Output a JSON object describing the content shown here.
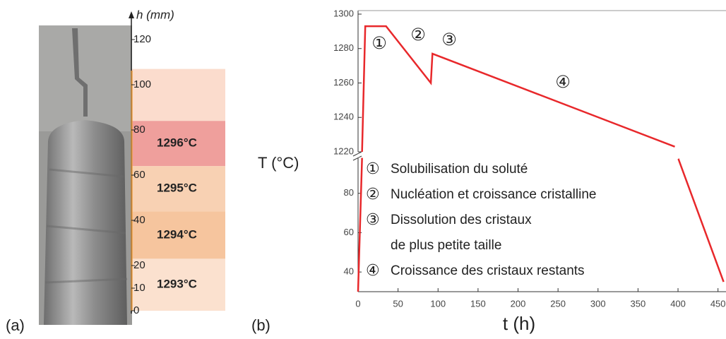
{
  "chart_data": [
    {
      "type": "bands",
      "panel_label": "(a)",
      "ylabel": "h (mm)",
      "ylim": [
        0,
        120
      ],
      "yticks": [
        0,
        10,
        20,
        40,
        60,
        80,
        100,
        120
      ],
      "bands": [
        {
          "range": [
            84,
            107
          ],
          "label": null,
          "color": "#fbdccd"
        },
        {
          "range": [
            64,
            84
          ],
          "label": "1296°C",
          "color": "#ef9f9c"
        },
        {
          "range": [
            44,
            64
          ],
          "label": "1295°C",
          "color": "#f8d1b3"
        },
        {
          "range": [
            23,
            44
          ],
          "label": "1294°C",
          "color": "#f6c59e"
        },
        {
          "range": [
            0,
            23
          ],
          "label": "1293°C",
          "color": "#fbe1cf"
        }
      ]
    },
    {
      "type": "line",
      "panel_label": "(b)",
      "xlabel": "t (h)",
      "ylabel": "T (°C)",
      "xlim": [
        0,
        460
      ],
      "xticks": [
        0,
        50,
        100,
        150,
        200,
        250,
        300,
        350,
        400,
        450
      ],
      "ylim_lower": [
        30,
        100
      ],
      "yticks_lower": [
        40,
        60,
        80
      ],
      "ylim_upper": [
        1220,
        1300
      ],
      "yticks_upper": [
        1220,
        1240,
        1260,
        1280,
        1300
      ],
      "series": [
        {
          "name": "T",
          "color": "#e8282b",
          "x": [
            0,
            5,
            null,
            5,
            9,
            35,
            91,
            93,
            396,
            null,
            400,
            457
          ],
          "values": [
            30,
            98,
            null,
            1220,
            1293,
            1293,
            1260,
            1277,
            1223,
            null,
            98,
            35
          ]
        }
      ],
      "annotations": [
        "①",
        "②",
        "③",
        "④"
      ],
      "legend_items": [
        {
          "marker": "①",
          "lines": [
            "Solubilisation du soluté"
          ]
        },
        {
          "marker": "②",
          "lines": [
            "Nucléation et croissance cristalline"
          ]
        },
        {
          "marker": "③",
          "lines": [
            "Dissolution des cristaux",
            "de plus petite taille"
          ]
        },
        {
          "marker": "④",
          "lines": [
            "Croissance des cristaux restants"
          ]
        }
      ]
    }
  ]
}
